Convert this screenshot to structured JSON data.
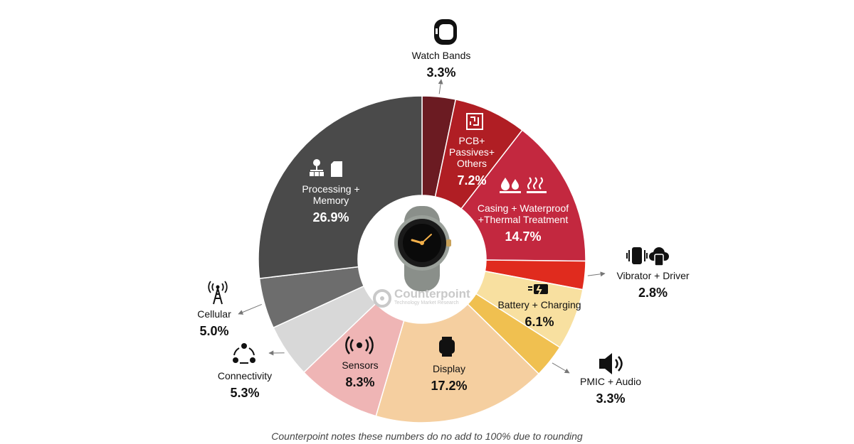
{
  "chart_data": {
    "type": "pie",
    "variant": "donut",
    "start_angle_deg": 0,
    "direction": "clockwise",
    "slices": [
      {
        "label": "Watch Bands",
        "value": 3.3,
        "value_label": "3.3%",
        "color": "#6b1b22",
        "icon": "watch-band-icon"
      },
      {
        "label": "PCB+ Passives+ Others",
        "value": 7.2,
        "value_label": "7.2%",
        "color": "#b01e24",
        "icon": "circuit-board-icon"
      },
      {
        "label": "Casing + Waterproof +Thermal Treatment",
        "value": 14.7,
        "value_label": "14.7%",
        "color": "#c3283f",
        "icon": "waterproof-thermal-icon"
      },
      {
        "label": "Vibrator + Driver",
        "value": 2.8,
        "value_label": "2.8%",
        "color": "#e02b1e",
        "icon": "vibration-icon"
      },
      {
        "label": "Battery + Charging",
        "value": 6.1,
        "value_label": "6.1%",
        "color": "#f8e0a0",
        "icon": "battery-charging-icon"
      },
      {
        "label": "PMIC + Audio",
        "value": 3.3,
        "value_label": "3.3%",
        "color": "#f0c050",
        "icon": "speaker-icon"
      },
      {
        "label": "Display",
        "value": 17.2,
        "value_label": "17.2%",
        "color": "#f5cfa0",
        "icon": "smartwatch-display-icon"
      },
      {
        "label": "Sensors",
        "value": 8.3,
        "value_label": "8.3%",
        "color": "#efb5b5",
        "icon": "sensor-icon"
      },
      {
        "label": "Connectivity",
        "value": 5.3,
        "value_label": "5.3%",
        "color": "#d8d8d8",
        "icon": "connectivity-icon"
      },
      {
        "label": "Cellular",
        "value": 5.0,
        "value_label": "5.0%",
        "color": "#6d6d6d",
        "icon": "cell-tower-icon"
      },
      {
        "label": "Processing + Memory",
        "value": 26.9,
        "value_label": "26.9%",
        "color": "#4a4a4a",
        "icon": "processor-memory-icon"
      }
    ]
  },
  "watermark": {
    "name": "Counterpoint",
    "sub": "Technology Market Research"
  },
  "footnote": "Counterpoint notes these numbers do no add to 100% due to rounding"
}
